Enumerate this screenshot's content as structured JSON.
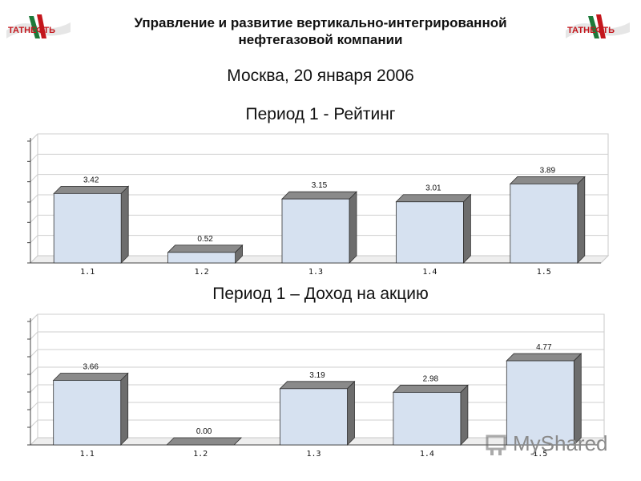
{
  "header": {
    "title_line1": "Управление и развитие вертикально-интегрированной",
    "title_line2": "нефтегазовой компании",
    "logo_text": "ТАТНЕФТЬ",
    "date_line": "Москва, 20 января 2006"
  },
  "chart_data": [
    {
      "type": "bar",
      "title": "Период 1 - Рейтинг",
      "categories": [
        "1.1",
        "1.2",
        "1.3",
        "1.4",
        "1.5"
      ],
      "values": [
        3.42,
        0.52,
        3.15,
        3.01,
        3.89
      ],
      "value_labels": [
        "3.42",
        "0.52",
        "3.15",
        "3.01",
        "3.89"
      ],
      "ylim": [
        0,
        6
      ],
      "grid": true,
      "style": "3d",
      "bar_color": "#d6e1f0"
    },
    {
      "type": "bar",
      "title": "Период 1 – Доход на акцию",
      "categories": [
        "1.1",
        "1.2",
        "1.3",
        "1.4",
        "1.5"
      ],
      "values": [
        3.66,
        0.0,
        3.19,
        2.98,
        4.77
      ],
      "value_labels": [
        "3.66",
        "0.00",
        "3.19",
        "2.98",
        "4.77"
      ],
      "ylim": [
        0,
        7
      ],
      "grid": true,
      "style": "3d",
      "bar_color": "#d6e1f0"
    }
  ],
  "watermark": {
    "text": "MyShared"
  }
}
